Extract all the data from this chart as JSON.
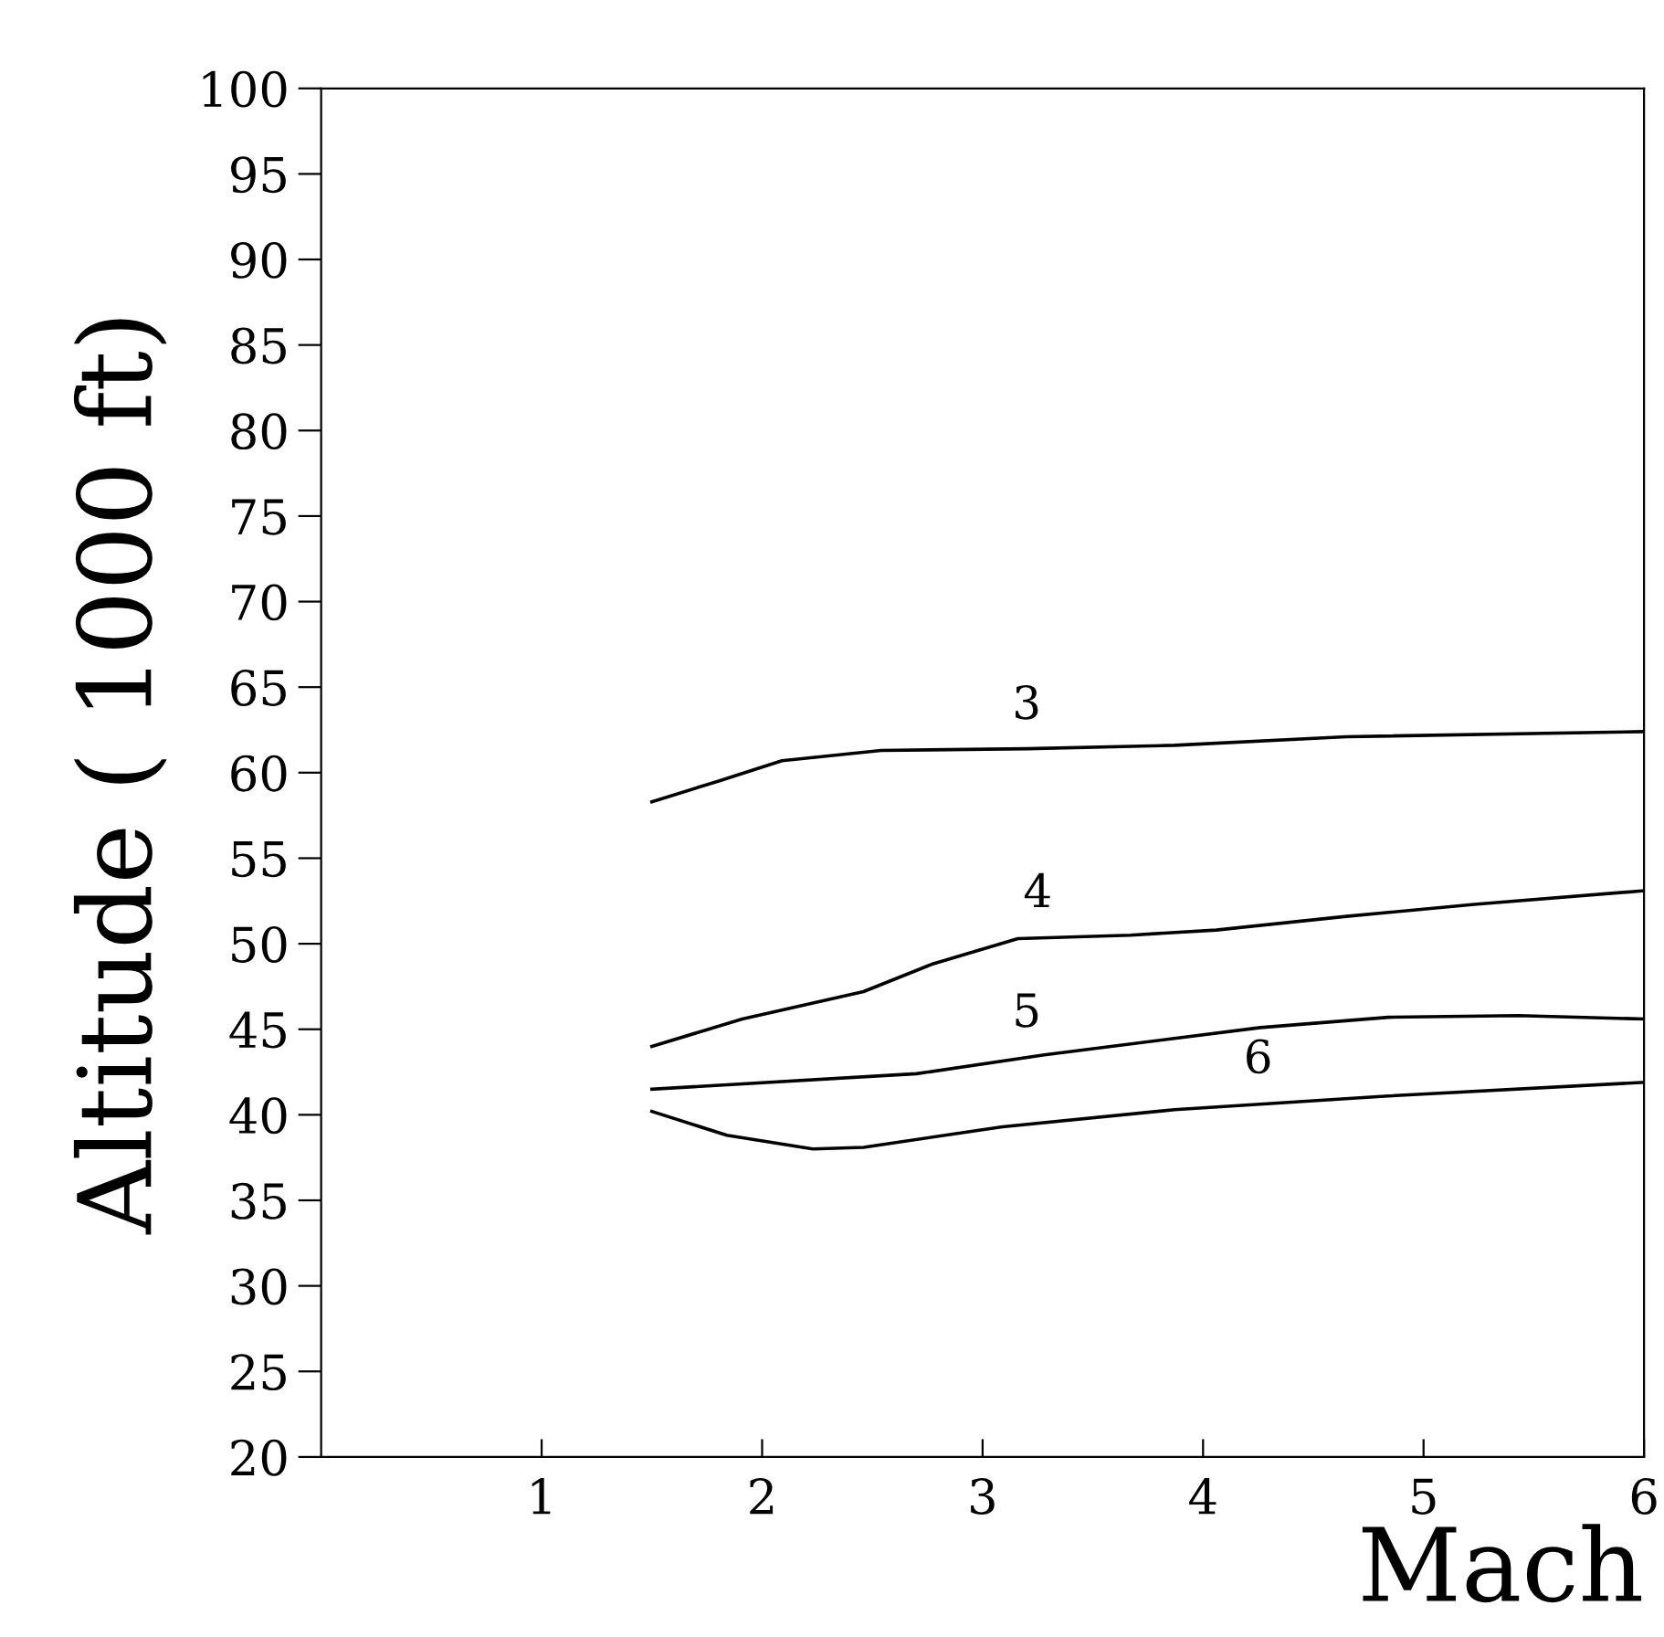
{
  "chart_data": {
    "type": "line",
    "xlabel": "Mach",
    "ylabel": "Altitude ( 1000 ft)",
    "xlim": [
      0,
      6
    ],
    "ylim": [
      20,
      100
    ],
    "xticks": [
      1,
      2,
      3,
      4,
      5,
      6
    ],
    "yticks": [
      20,
      25,
      30,
      35,
      40,
      45,
      50,
      55,
      60,
      65,
      70,
      75,
      80,
      85,
      90,
      95,
      100
    ],
    "grid": false,
    "marker": "none",
    "line_style": "solid",
    "series": [
      {
        "color": "#000000",
        "x": [
          1.5,
          1.8,
          2.09,
          2.54,
          3.2,
          3.87,
          4.65,
          6
        ],
        "values": [
          58.3,
          59.5,
          60.7,
          61.3,
          61.4,
          61.6,
          62.1,
          62.4
        ]
      },
      {
        "color": "#000000",
        "x": [
          1.5,
          1.91,
          2.46,
          2.77,
          3.16,
          3.67,
          4.06,
          4.65,
          5.23,
          6
        ],
        "values": [
          44.0,
          45.6,
          47.2,
          48.8,
          50.3,
          50.5,
          50.8,
          51.6,
          52.3,
          53.1
        ]
      },
      {
        "color": "#000000",
        "x": [
          1.5,
          2.7,
          3.28,
          4.26,
          4.84,
          5.43,
          6
        ],
        "values": [
          41.5,
          42.4,
          43.5,
          45.1,
          45.7,
          45.8,
          45.6
        ]
      },
      {
        "color": "#000000",
        "x": [
          1.5,
          1.84,
          2.23,
          2.46,
          3.09,
          3.87,
          4.84,
          6
        ],
        "values": [
          40.2,
          38.8,
          38.0,
          38.1,
          39.3,
          40.3,
          41.1,
          41.9
        ]
      }
    ],
    "annotations": [
      {
        "text": "3",
        "x": 3.2,
        "y": 61.4
      },
      {
        "text": "4",
        "x": 3.25,
        "y": 50.4
      },
      {
        "text": "5",
        "x": 3.2,
        "y": 43.4
      },
      {
        "text": "6",
        "x": 4.25,
        "y": 40.7
      }
    ]
  }
}
